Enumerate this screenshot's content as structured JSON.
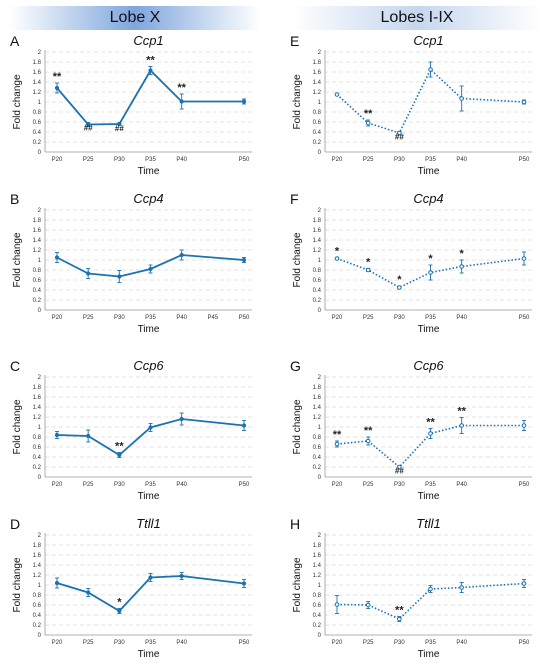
{
  "headers": {
    "left": "Lobe X",
    "right": "Lobes I-IX"
  },
  "colors": {
    "line": "#1a72b0",
    "grid": "#c8c8c8",
    "axis": "#999999"
  },
  "chart_data": [
    {
      "panel": "A",
      "gene": "Ccp1",
      "style": "solid",
      "type": "line",
      "xlabel": "Time",
      "ylabel": "Fold change",
      "ylim": [
        0,
        2
      ],
      "yticks": [
        "0",
        "0.2",
        "0.4",
        "0.6",
        "0.8",
        "1",
        "1.2",
        "1.4",
        "1.6",
        "1.8",
        "2"
      ],
      "xticks": [
        "P20",
        "P25",
        "P30",
        "P35",
        "P40",
        "P50"
      ],
      "points": [
        {
          "x": "P20",
          "y": 1.28,
          "err": 0.1,
          "mark": "**"
        },
        {
          "x": "P25",
          "y": 0.55,
          "err": 0.04,
          "mark": "##"
        },
        {
          "x": "P30",
          "y": 0.56,
          "err": 0.02,
          "mark": "##"
        },
        {
          "x": "P35",
          "y": 1.63,
          "err": 0.08,
          "mark": "**"
        },
        {
          "x": "P40",
          "y": 1.01,
          "err": 0.15,
          "mark": "**"
        },
        {
          "x": "P50",
          "y": 1.01,
          "err": 0.05,
          "mark": ""
        }
      ]
    },
    {
      "panel": "E",
      "gene": "Ccp1",
      "style": "dotted",
      "type": "line",
      "xlabel": "Time",
      "ylabel": "Fold change",
      "ylim": [
        0,
        2
      ],
      "yticks": [
        "0",
        "0.2",
        "0.4",
        "0.6",
        "0.8",
        "1",
        "1.2",
        "1.4",
        "1.6",
        "1.8",
        "2"
      ],
      "xticks": [
        "P20",
        "P25",
        "P30",
        "P35",
        "P40",
        "P50"
      ],
      "points": [
        {
          "x": "P20",
          "y": 1.15,
          "err": 0.02,
          "mark": ""
        },
        {
          "x": "P25",
          "y": 0.58,
          "err": 0.06,
          "mark": "**"
        },
        {
          "x": "P30",
          "y": 0.38,
          "err": 0.03,
          "mark": "##"
        },
        {
          "x": "P35",
          "y": 1.65,
          "err": 0.15,
          "mark": ""
        },
        {
          "x": "P40",
          "y": 1.07,
          "err": 0.25,
          "mark": ""
        },
        {
          "x": "P50",
          "y": 1.0,
          "err": 0.04,
          "mark": ""
        }
      ]
    },
    {
      "panel": "B",
      "gene": "Ccp4",
      "style": "solid",
      "type": "line",
      "xlabel": "Time",
      "ylabel": "Fold change",
      "ylim": [
        0,
        2
      ],
      "yticks": [
        "0",
        "0.2",
        "0.4",
        "0.6",
        "0.8",
        "1",
        "1.2",
        "1.4",
        "1.6",
        "1.8",
        "2"
      ],
      "xticks": [
        "P20",
        "P25",
        "P30",
        "P35",
        "P40",
        "P45",
        "P50"
      ],
      "points": [
        {
          "x": "P20",
          "y": 1.05,
          "err": 0.1,
          "mark": ""
        },
        {
          "x": "P25",
          "y": 0.73,
          "err": 0.1,
          "mark": ""
        },
        {
          "x": "P30",
          "y": 0.67,
          "err": 0.12,
          "mark": ""
        },
        {
          "x": "P35",
          "y": 0.82,
          "err": 0.08,
          "mark": ""
        },
        {
          "x": "P40",
          "y": 1.1,
          "err": 0.1,
          "mark": ""
        },
        {
          "x": "P50",
          "y": 1.0,
          "err": 0.05,
          "mark": ""
        }
      ]
    },
    {
      "panel": "F",
      "gene": "Ccp4",
      "style": "dotted",
      "type": "line",
      "xlabel": "Time",
      "ylabel": "Fold change",
      "ylim": [
        0,
        2
      ],
      "yticks": [
        "0",
        "0.2",
        "0.4",
        "0.6",
        "0.8",
        "1",
        "1.2",
        "1.4",
        "1.6",
        "1.8",
        "2"
      ],
      "xticks": [
        "P20",
        "P25",
        "P30",
        "P35",
        "P40",
        "P50"
      ],
      "points": [
        {
          "x": "P20",
          "y": 1.03,
          "err": 0.02,
          "mark": "*"
        },
        {
          "x": "P25",
          "y": 0.8,
          "err": 0.03,
          "mark": "*"
        },
        {
          "x": "P30",
          "y": 0.45,
          "err": 0.03,
          "mark": "*"
        },
        {
          "x": "P35",
          "y": 0.75,
          "err": 0.15,
          "mark": "*"
        },
        {
          "x": "P40",
          "y": 0.87,
          "err": 0.13,
          "mark": "*"
        },
        {
          "x": "P50",
          "y": 1.03,
          "err": 0.13,
          "mark": ""
        }
      ]
    },
    {
      "panel": "C",
      "gene": "Ccp6",
      "style": "solid",
      "type": "line",
      "xlabel": "Time",
      "ylabel": "Fold change",
      "ylim": [
        0,
        2
      ],
      "yticks": [
        "0",
        "0.2",
        "0.4",
        "0.6",
        "0.8",
        "1",
        "1.2",
        "1.4",
        "1.6",
        "1.8",
        "2"
      ],
      "xticks": [
        "P20",
        "P25",
        "P30",
        "P35",
        "P40",
        "P50"
      ],
      "points": [
        {
          "x": "P20",
          "y": 0.84,
          "err": 0.07,
          "mark": ""
        },
        {
          "x": "P25",
          "y": 0.82,
          "err": 0.12,
          "mark": ""
        },
        {
          "x": "P30",
          "y": 0.44,
          "err": 0.05,
          "mark": "**"
        },
        {
          "x": "P35",
          "y": 0.99,
          "err": 0.08,
          "mark": ""
        },
        {
          "x": "P40",
          "y": 1.16,
          "err": 0.12,
          "mark": ""
        },
        {
          "x": "P50",
          "y": 1.03,
          "err": 0.1,
          "mark": ""
        }
      ]
    },
    {
      "panel": "G",
      "gene": "Ccp6",
      "style": "dotted",
      "type": "line",
      "xlabel": "Time",
      "ylabel": "Fold change",
      "ylim": [
        0,
        2
      ],
      "yticks": [
        "0",
        "0.2",
        "0.4",
        "0.6",
        "0.8",
        "1",
        "1.2",
        "1.4",
        "1.6",
        "1.8",
        "2"
      ],
      "xticks": [
        "P20",
        "P25",
        "P30",
        "P35",
        "P40",
        "P50"
      ],
      "points": [
        {
          "x": "P20",
          "y": 0.66,
          "err": 0.06,
          "mark": "**"
        },
        {
          "x": "P25",
          "y": 0.72,
          "err": 0.08,
          "mark": "**"
        },
        {
          "x": "P30",
          "y": 0.2,
          "err": 0.03,
          "mark": "##"
        },
        {
          "x": "P35",
          "y": 0.87,
          "err": 0.1,
          "mark": "**"
        },
        {
          "x": "P40",
          "y": 1.03,
          "err": 0.16,
          "mark": "**"
        },
        {
          "x": "P50",
          "y": 1.03,
          "err": 0.1,
          "mark": ""
        }
      ]
    },
    {
      "panel": "D",
      "gene": "Ttll1",
      "style": "solid",
      "type": "line",
      "xlabel": "Time",
      "ylabel": "Fold change",
      "ylim": [
        0,
        2
      ],
      "yticks": [
        "0",
        "0.2",
        "0.4",
        "0.6",
        "0.8",
        "1",
        "1.2",
        "1.4",
        "1.6",
        "1.8",
        "2"
      ],
      "xticks": [
        "P20",
        "P25",
        "P30",
        "P35",
        "P40",
        "P50"
      ],
      "points": [
        {
          "x": "P20",
          "y": 1.04,
          "err": 0.1,
          "mark": ""
        },
        {
          "x": "P25",
          "y": 0.85,
          "err": 0.08,
          "mark": ""
        },
        {
          "x": "P30",
          "y": 0.48,
          "err": 0.05,
          "mark": "*"
        },
        {
          "x": "P35",
          "y": 1.15,
          "err": 0.08,
          "mark": ""
        },
        {
          "x": "P40",
          "y": 1.18,
          "err": 0.07,
          "mark": ""
        },
        {
          "x": "P50",
          "y": 1.03,
          "err": 0.08,
          "mark": ""
        }
      ]
    },
    {
      "panel": "H",
      "gene": "Ttll1",
      "style": "dotted",
      "type": "line",
      "xlabel": "Time",
      "ylabel": "Fold change",
      "ylim": [
        0,
        2
      ],
      "yticks": [
        "0",
        "0.2",
        "0.4",
        "0.6",
        "0.8",
        "1",
        "1.2",
        "1.4",
        "1.6",
        "1.8",
        "2"
      ],
      "xticks": [
        "P20",
        "P25",
        "P30",
        "P35",
        "P40",
        "P50"
      ],
      "points": [
        {
          "x": "P20",
          "y": 0.61,
          "err": 0.18,
          "mark": ""
        },
        {
          "x": "P25",
          "y": 0.6,
          "err": 0.07,
          "mark": ""
        },
        {
          "x": "P30",
          "y": 0.32,
          "err": 0.05,
          "mark": "**"
        },
        {
          "x": "P35",
          "y": 0.92,
          "err": 0.07,
          "mark": ""
        },
        {
          "x": "P40",
          "y": 0.95,
          "err": 0.1,
          "mark": ""
        },
        {
          "x": "P50",
          "y": 1.03,
          "err": 0.08,
          "mark": ""
        }
      ]
    }
  ]
}
